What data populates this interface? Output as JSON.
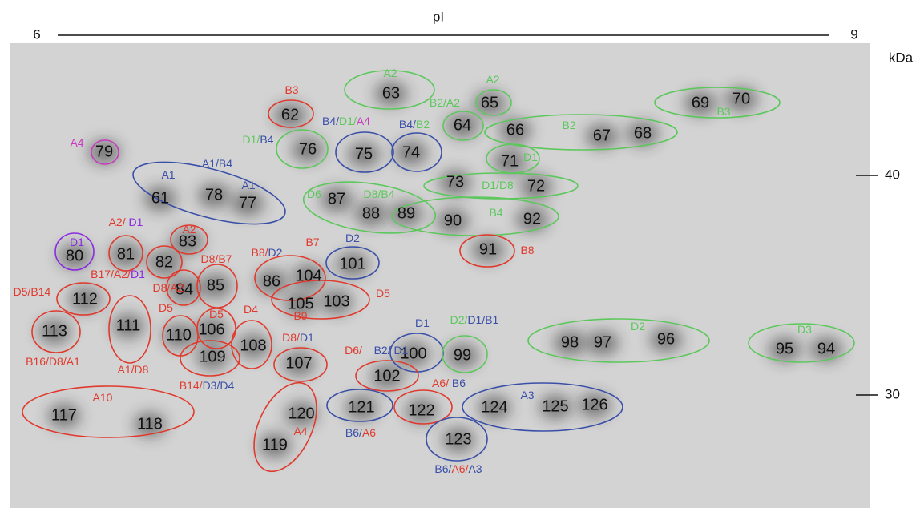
{
  "axis": {
    "x_title": "pI",
    "x_left": "6",
    "x_right": "9",
    "y_unit": "kDa",
    "y_marks": [
      "40",
      "30"
    ]
  },
  "spots": [
    "63",
    "62",
    "65",
    "64",
    "69",
    "70",
    "66",
    "67",
    "68",
    "79",
    "76",
    "75",
    "74",
    "71",
    "61",
    "78",
    "77",
    "73",
    "72",
    "87",
    "88",
    "89",
    "90",
    "92",
    "80",
    "81",
    "83",
    "82",
    "91",
    "101",
    "86",
    "104",
    "84",
    "85",
    "112",
    "105",
    "103",
    "113",
    "111",
    "110",
    "106",
    "108",
    "109",
    "100",
    "99",
    "98",
    "97",
    "96",
    "95",
    "94",
    "107",
    "102",
    "117",
    "118",
    "120",
    "119",
    "121",
    "122",
    "124",
    "125",
    "126",
    "123"
  ],
  "annotations": [
    [
      {
        "text": "A2",
        "color": "#5cc85c"
      }
    ],
    [
      {
        "text": "B3",
        "color": "#e03a2e"
      }
    ],
    [
      {
        "text": "A2",
        "color": "#5cc85c"
      }
    ],
    [
      {
        "text": "B2/A2",
        "color": "#5cc85c"
      }
    ],
    [
      {
        "text": "B3",
        "color": "#5cc85c"
      }
    ],
    [
      {
        "text": "B4/",
        "color": "#3a4fa8"
      },
      {
        "text": "D1/",
        "color": "#5cc85c"
      },
      {
        "text": "A4",
        "color": "#c83cbf"
      }
    ],
    [
      {
        "text": "B4/",
        "color": "#3a4fa8"
      },
      {
        "text": "B2",
        "color": "#5cc85c"
      }
    ],
    [
      {
        "text": "D1/",
        "color": "#5cc85c"
      },
      {
        "text": "B4",
        "color": "#3a4fa8"
      }
    ],
    [
      {
        "text": "B2",
        "color": "#5cc85c"
      }
    ],
    [
      {
        "text": "A4",
        "color": "#c83cbf"
      }
    ],
    [
      {
        "text": "D1",
        "color": "#5cc85c"
      }
    ],
    [
      {
        "text": "A1",
        "color": "#3a4fa8"
      }
    ],
    [
      {
        "text": "A1/B4",
        "color": "#3a4fa8"
      }
    ],
    [
      {
        "text": "A1",
        "color": "#3a4fa8"
      }
    ],
    [
      {
        "text": "D1/D8",
        "color": "#5cc85c"
      }
    ],
    [
      {
        "text": "D6",
        "color": "#5cc85c"
      }
    ],
    [
      {
        "text": "D8/B4",
        "color": "#5cc85c"
      }
    ],
    [
      {
        "text": "B4",
        "color": "#5cc85c"
      }
    ],
    [
      {
        "text": "D1",
        "color": "#8a2be2"
      }
    ],
    [
      {
        "text": "A2/ ",
        "color": "#e03a2e"
      },
      {
        "text": "D1",
        "color": "#8a2be2"
      }
    ],
    [
      {
        "text": "A2",
        "color": "#e03a2e"
      }
    ],
    [
      {
        "text": "B8",
        "color": "#e03a2e"
      }
    ],
    [
      {
        "text": "B8/",
        "color": "#e03a2e"
      },
      {
        "text": "D2",
        "color": "#3a4fa8"
      }
    ],
    [
      {
        "text": "B7",
        "color": "#e03a2e"
      }
    ],
    [
      {
        "text": "D2",
        "color": "#3a4fa8"
      }
    ],
    [
      {
        "text": "D8/B7",
        "color": "#e03a2e"
      }
    ],
    [
      {
        "text": "B17/A2/",
        "color": "#e03a2e"
      },
      {
        "text": "D1",
        "color": "#8a2be2"
      }
    ],
    [
      {
        "text": "D8/A2",
        "color": "#e03a2e"
      }
    ],
    [
      {
        "text": "D5/B14",
        "color": "#e03a2e"
      }
    ],
    [
      {
        "text": "D5",
        "color": "#e03a2e"
      }
    ],
    [
      {
        "text": "B9",
        "color": "#e03a2e"
      }
    ],
    [
      {
        "text": "D5",
        "color": "#e03a2e"
      }
    ],
    [
      {
        "text": "D5",
        "color": "#e03a2e"
      }
    ],
    [
      {
        "text": "D4",
        "color": "#e03a2e"
      }
    ],
    [
      {
        "text": "D8/",
        "color": "#e03a2e"
      },
      {
        "text": "D1",
        "color": "#3a4fa8"
      }
    ],
    [
      {
        "text": "B16/D8/A1",
        "color": "#e03a2e"
      }
    ],
    [
      {
        "text": "A1/D8",
        "color": "#e03a2e"
      }
    ],
    [
      {
        "text": "D6/",
        "color": "#e03a2e"
      }
    ],
    [
      {
        "text": "B2/ D1",
        "color": "#3a4fa8"
      }
    ],
    [
      {
        "text": "D1",
        "color": "#3a4fa8"
      }
    ],
    [
      {
        "text": "D2/",
        "color": "#5cc85c"
      },
      {
        "text": "D1/B1",
        "color": "#3a4fa8"
      }
    ],
    [
      {
        "text": "D2",
        "color": "#5cc85c"
      }
    ],
    [
      {
        "text": "D3",
        "color": "#5cc85c"
      }
    ],
    [
      {
        "text": "B14/",
        "color": "#e03a2e"
      },
      {
        "text": "D3/D4",
        "color": "#3a4fa8"
      }
    ],
    [
      {
        "text": "A6/ ",
        "color": "#e03a2e"
      },
      {
        "text": "B6",
        "color": "#3a4fa8"
      }
    ],
    [
      {
        "text": "A10",
        "color": "#e03a2e"
      }
    ],
    [
      {
        "text": "A3",
        "color": "#3a4fa8"
      }
    ],
    [
      {
        "text": "A4",
        "color": "#e03a2e"
      }
    ],
    [
      {
        "text": "B6/",
        "color": "#3a4fa8"
      },
      {
        "text": "A6",
        "color": "#e03a2e"
      }
    ],
    [
      {
        "text": "B6/",
        "color": "#3a4fa8"
      },
      {
        "text": "A6/",
        "color": "#e03a2e"
      },
      {
        "text": "A3",
        "color": "#3a4fa8"
      }
    ]
  ]
}
